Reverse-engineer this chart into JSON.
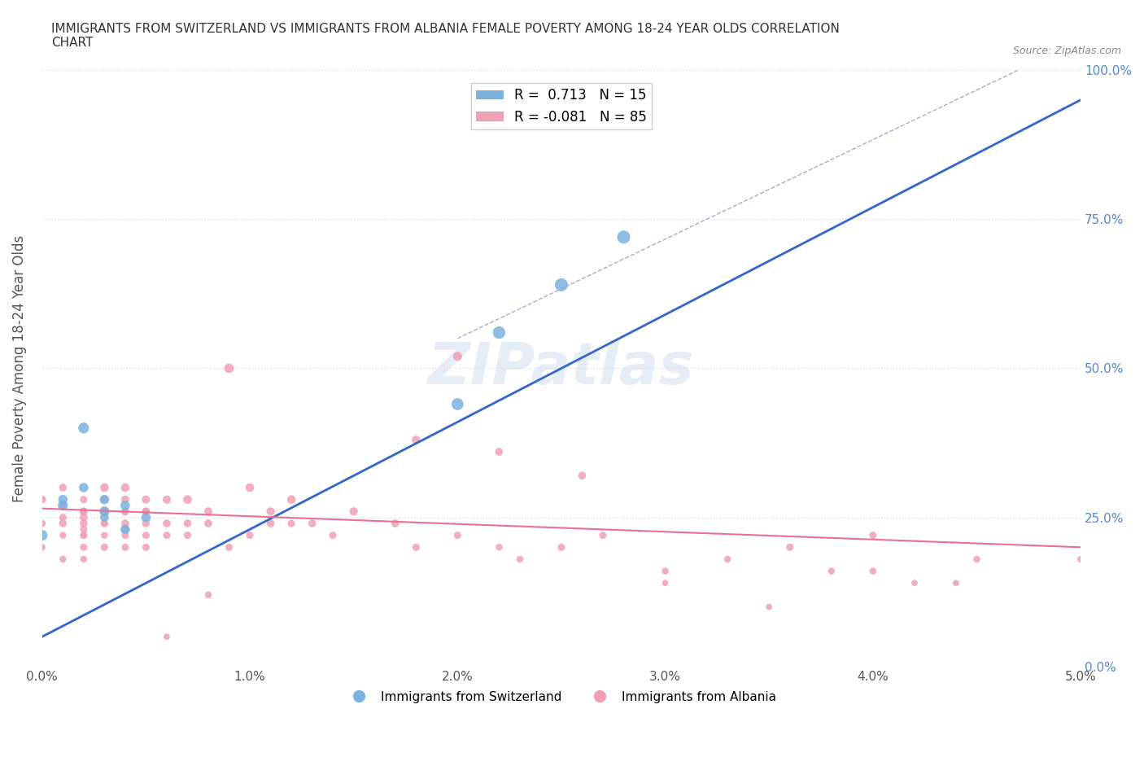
{
  "title": "IMMIGRANTS FROM SWITZERLAND VS IMMIGRANTS FROM ALBANIA FEMALE POVERTY AMONG 18-24 YEAR OLDS CORRELATION\nCHART",
  "source": "Source: ZipAtlas.com",
  "xlabel_bottom": "",
  "ylabel": "Female Poverty Among 18-24 Year Olds",
  "watermark": "ZIPatlas",
  "legend_entries": [
    {
      "label": "R =  0.713   N = 15",
      "color": "#a8c8f0"
    },
    {
      "label": "R = -0.081   N = 85",
      "color": "#f0a8b8"
    }
  ],
  "xlim": [
    0.0,
    0.05
  ],
  "ylim": [
    0.0,
    1.0
  ],
  "xtick_labels": [
    "0.0%",
    "1.0%",
    "2.0%",
    "3.0%",
    "4.0%",
    "5.0%"
  ],
  "xtick_vals": [
    0.0,
    0.01,
    0.02,
    0.03,
    0.04,
    0.05
  ],
  "ytick_labels_right": [
    "0.0%",
    "25.0%",
    "50.0%",
    "75.0%",
    "100.0%"
  ],
  "ytick_vals": [
    0.0,
    0.25,
    0.5,
    0.75,
    1.0
  ],
  "background_color": "#ffffff",
  "grid_color": "#dddddd",
  "swiss_color": "#7ab3e0",
  "albania_color": "#f0a0b5",
  "swiss_line_color": "#3366cc",
  "albania_line_color": "#e87090",
  "swiss_scatter": {
    "x": [
      0.0,
      0.001,
      0.001,
      0.002,
      0.002,
      0.003,
      0.003,
      0.003,
      0.004,
      0.004,
      0.005,
      0.02,
      0.022,
      0.025,
      0.028
    ],
    "y": [
      0.22,
      0.28,
      0.27,
      0.3,
      0.4,
      0.28,
      0.25,
      0.26,
      0.27,
      0.23,
      0.25,
      0.44,
      0.56,
      0.64,
      0.72
    ],
    "sizes": [
      80,
      60,
      70,
      60,
      80,
      60,
      50,
      70,
      60,
      60,
      60,
      100,
      110,
      120,
      120
    ]
  },
  "albania_scatter": {
    "x": [
      0.0,
      0.0,
      0.0,
      0.001,
      0.001,
      0.001,
      0.001,
      0.001,
      0.001,
      0.002,
      0.002,
      0.002,
      0.002,
      0.002,
      0.002,
      0.002,
      0.002,
      0.002,
      0.002,
      0.003,
      0.003,
      0.003,
      0.003,
      0.003,
      0.003,
      0.003,
      0.003,
      0.004,
      0.004,
      0.004,
      0.004,
      0.004,
      0.004,
      0.004,
      0.004,
      0.005,
      0.005,
      0.005,
      0.005,
      0.005,
      0.005,
      0.006,
      0.006,
      0.006,
      0.007,
      0.007,
      0.007,
      0.008,
      0.008,
      0.009,
      0.009,
      0.01,
      0.01,
      0.011,
      0.011,
      0.012,
      0.013,
      0.014,
      0.015,
      0.017,
      0.018,
      0.02,
      0.022,
      0.023,
      0.025,
      0.027,
      0.03,
      0.033,
      0.036,
      0.04,
      0.042,
      0.045,
      0.03,
      0.035,
      0.018,
      0.022,
      0.026,
      0.02,
      0.04,
      0.05,
      0.038,
      0.044,
      0.012,
      0.006,
      0.008
    ],
    "y": [
      0.28,
      0.24,
      0.2,
      0.3,
      0.27,
      0.22,
      0.25,
      0.18,
      0.24,
      0.26,
      0.28,
      0.22,
      0.24,
      0.2,
      0.26,
      0.23,
      0.18,
      0.25,
      0.22,
      0.3,
      0.26,
      0.24,
      0.22,
      0.28,
      0.2,
      0.26,
      0.24,
      0.3,
      0.26,
      0.22,
      0.28,
      0.24,
      0.2,
      0.26,
      0.23,
      0.26,
      0.22,
      0.28,
      0.24,
      0.2,
      0.26,
      0.24,
      0.22,
      0.28,
      0.28,
      0.24,
      0.22,
      0.26,
      0.24,
      0.2,
      0.5,
      0.3,
      0.22,
      0.26,
      0.24,
      0.28,
      0.24,
      0.22,
      0.26,
      0.24,
      0.2,
      0.22,
      0.2,
      0.18,
      0.2,
      0.22,
      0.16,
      0.18,
      0.2,
      0.16,
      0.14,
      0.18,
      0.14,
      0.1,
      0.38,
      0.36,
      0.32,
      0.52,
      0.22,
      0.18,
      0.16,
      0.14,
      0.24,
      0.05,
      0.12
    ],
    "sizes": [
      40,
      35,
      30,
      40,
      35,
      30,
      35,
      30,
      40,
      40,
      35,
      30,
      40,
      35,
      40,
      35,
      30,
      40,
      35,
      50,
      40,
      35,
      30,
      45,
      35,
      40,
      35,
      50,
      40,
      35,
      45,
      40,
      35,
      40,
      35,
      40,
      35,
      45,
      40,
      35,
      40,
      40,
      35,
      45,
      50,
      40,
      35,
      45,
      40,
      35,
      60,
      50,
      35,
      45,
      40,
      50,
      40,
      35,
      45,
      40,
      35,
      35,
      30,
      30,
      35,
      35,
      30,
      30,
      35,
      30,
      25,
      30,
      25,
      25,
      45,
      40,
      40,
      55,
      35,
      30,
      30,
      25,
      35,
      25,
      30
    ]
  },
  "swiss_regression": {
    "x": [
      0.0,
      0.05
    ],
    "y": [
      0.05,
      0.95
    ]
  },
  "albania_regression": {
    "x": [
      0.0,
      0.05
    ],
    "y": [
      0.265,
      0.2
    ]
  },
  "dashed_line": {
    "x": [
      0.02,
      0.05
    ],
    "y": [
      0.55,
      1.05
    ]
  }
}
